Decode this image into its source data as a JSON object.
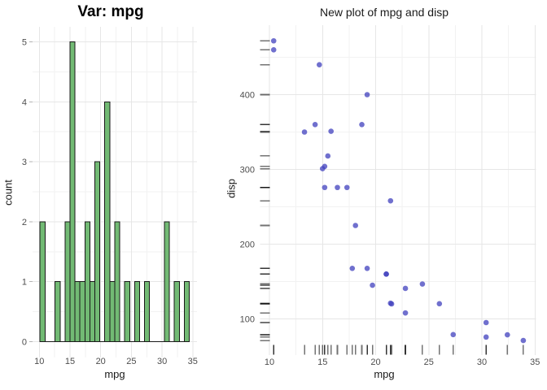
{
  "colors": {
    "background": "#ffffff",
    "grid_major": "#e6e6e6",
    "grid_minor": "#f2f2f2",
    "tick_text": "#4d4d4d",
    "axis_text": "#1a1a1a",
    "hist_fill": "#72ba74",
    "hist_stroke": "#1a1a1a",
    "point_fill": "#4040be",
    "rug_stroke": "#000000"
  },
  "chart_data": [
    {
      "type": "bar",
      "title": "Var: mpg",
      "xlabel": "mpg",
      "ylabel": "count",
      "x_ticks": [
        10,
        15,
        20,
        25,
        30,
        35
      ],
      "y_ticks": [
        0,
        1,
        2,
        3,
        4,
        5
      ],
      "xlim": [
        8.9,
        35.65
      ],
      "ylim": [
        -0.25,
        5.25
      ],
      "grid": "on",
      "legend": "none",
      "binwidth": 0.81,
      "bin_centers": [
        10.53,
        11.34,
        12.15,
        12.97,
        13.78,
        14.59,
        15.4,
        16.21,
        17.02,
        17.83,
        18.64,
        19.45,
        20.26,
        21.07,
        21.88,
        22.69,
        23.5,
        24.31,
        25.12,
        25.93,
        26.74,
        27.55,
        28.36,
        29.17,
        29.98,
        30.79,
        31.6,
        32.41,
        33.22,
        34.03
      ],
      "counts": [
        2,
        0,
        0,
        1,
        0,
        2,
        5,
        1,
        1,
        2,
        1,
        3,
        0,
        4,
        1,
        2,
        0,
        1,
        0,
        1,
        0,
        1,
        0,
        0,
        0,
        2,
        0,
        1,
        0,
        1
      ]
    },
    {
      "type": "scatter",
      "title": "New plot of mpg and disp",
      "xlabel": "mpg",
      "ylabel": "disp",
      "x_ticks": [
        10,
        15,
        20,
        25,
        30,
        35
      ],
      "y_ticks": [
        100,
        200,
        300,
        400
      ],
      "xlim": [
        9.2,
        35.1
      ],
      "ylim": [
        51,
        492
      ],
      "grid": "on",
      "legend": "none",
      "rug_sides": "bottom-left",
      "points": [
        [
          21.0,
          160.0
        ],
        [
          21.0,
          160.0
        ],
        [
          22.8,
          108.0
        ],
        [
          21.4,
          258.0
        ],
        [
          18.7,
          360.0
        ],
        [
          18.1,
          225.0
        ],
        [
          14.3,
          360.0
        ],
        [
          24.4,
          146.7
        ],
        [
          22.8,
          140.8
        ],
        [
          19.2,
          167.6
        ],
        [
          17.8,
          167.6
        ],
        [
          16.4,
          275.8
        ],
        [
          17.3,
          275.8
        ],
        [
          15.2,
          275.8
        ],
        [
          10.4,
          472.0
        ],
        [
          10.4,
          460.0
        ],
        [
          14.7,
          440.0
        ],
        [
          32.4,
          78.7
        ],
        [
          30.4,
          75.7
        ],
        [
          33.9,
          71.1
        ],
        [
          21.5,
          120.1
        ],
        [
          15.5,
          318.0
        ],
        [
          15.2,
          304.0
        ],
        [
          13.3,
          350.0
        ],
        [
          19.2,
          400.0
        ],
        [
          27.3,
          79.0
        ],
        [
          26.0,
          120.3
        ],
        [
          30.4,
          95.1
        ],
        [
          15.8,
          351.0
        ],
        [
          19.7,
          145.0
        ],
        [
          15.0,
          301.0
        ],
        [
          21.4,
          121.0
        ]
      ]
    }
  ]
}
